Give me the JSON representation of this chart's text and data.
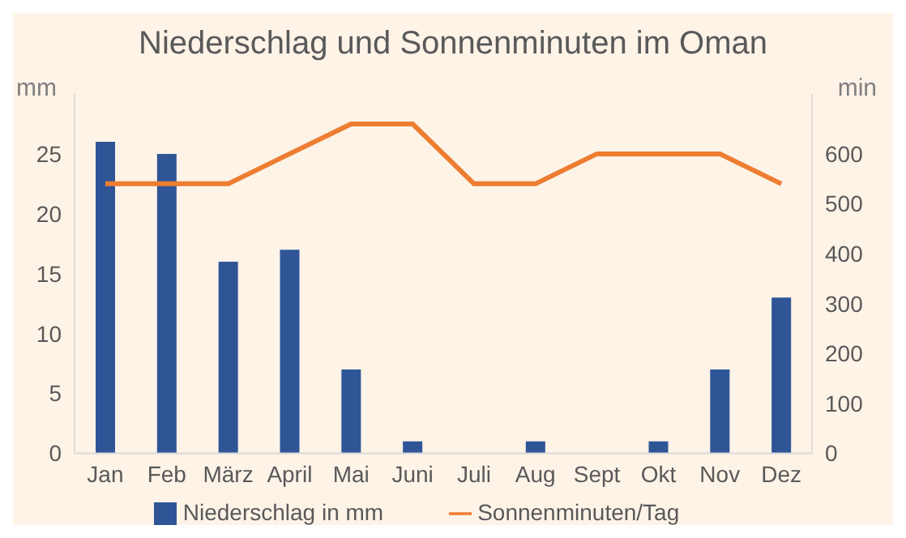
{
  "chart_data": {
    "type": "bar",
    "title": "Niederschlag und Sonnenminuten im  Oman",
    "ylabel": "mm",
    "y2label": "min",
    "categories": [
      "Jan",
      "Feb",
      "März",
      "April",
      "Mai",
      "Juni",
      "Juli",
      "Aug",
      "Sept",
      "Okt",
      "Nov",
      "Dez"
    ],
    "series": [
      {
        "name": "Niederschlag in mm",
        "color": "#2f5597",
        "values": [
          26,
          25,
          16,
          17,
          7,
          1,
          0,
          1,
          0,
          1,
          7,
          13
        ]
      },
      {
        "name": "Sonnenminuten/Tag",
        "type": "line",
        "axis": "y2",
        "color": "#ed7d31",
        "values": [
          540,
          540,
          540,
          600,
          660,
          660,
          540,
          540,
          600,
          600,
          600,
          540
        ]
      }
    ],
    "ylim": [
      0,
      30
    ],
    "yticks": [
      0,
      5,
      10,
      15,
      20,
      25
    ],
    "y2lim": [
      0,
      720
    ],
    "y2ticks": [
      0,
      100,
      200,
      300,
      400,
      500,
      600
    ],
    "legend": "bottom",
    "marker": "none",
    "line_style": "solid"
  }
}
